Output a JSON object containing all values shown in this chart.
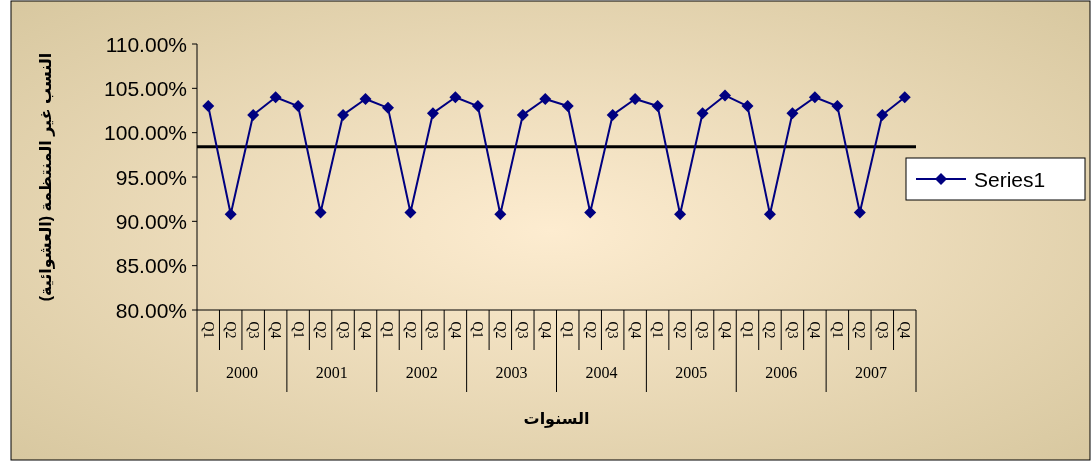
{
  "chart_data": {
    "type": "line",
    "ylabel": "النسب غير المنتظمة (العشوائية)",
    "xlabel": "السنوات",
    "categories": [
      "Q1",
      "Q2",
      "Q3",
      "Q4",
      "Q1",
      "Q2",
      "Q3",
      "Q4",
      "Q1",
      "Q2",
      "Q3",
      "Q4",
      "Q1",
      "Q2",
      "Q3",
      "Q4",
      "Q1",
      "Q2",
      "Q3",
      "Q4",
      "Q1",
      "Q2",
      "Q3",
      "Q4",
      "Q1",
      "Q2",
      "Q3",
      "Q4",
      "Q1",
      "Q2",
      "Q3",
      "Q4"
    ],
    "annotations": [
      "2000",
      "2001",
      "2002",
      "2003",
      "2004",
      "2005",
      "2006",
      "2007"
    ],
    "series": [
      {
        "name": "Series1",
        "color": "#000080",
        "values": [
          103.0,
          90.8,
          102.0,
          104.0,
          103.0,
          91.0,
          102.0,
          103.8,
          102.8,
          91.0,
          102.2,
          104.0,
          103.0,
          90.8,
          102.0,
          103.8,
          103.0,
          91.0,
          102.0,
          103.8,
          103.0,
          90.8,
          102.2,
          104.2,
          103.0,
          90.8,
          102.2,
          104.0,
          103.0,
          91.0,
          102.0,
          104.0
        ]
      }
    ],
    "ylim": [
      80,
      110
    ],
    "yticks": [
      {
        "value": 80,
        "label": "80.00%"
      },
      {
        "value": 85,
        "label": "85.00%"
      },
      {
        "value": 90,
        "label": "90.00%"
      },
      {
        "value": 95,
        "label": "95.00%"
      },
      {
        "value": 100,
        "label": "100.00%"
      },
      {
        "value": 105,
        "label": "105.00%"
      },
      {
        "value": 110,
        "label": "110.00%"
      }
    ],
    "ref_lines": [
      {
        "axis": "y",
        "value": 98.4,
        "color": "#000000"
      }
    ],
    "marker": "diamond",
    "line_style": "solid",
    "grid": false,
    "legend": "right"
  }
}
